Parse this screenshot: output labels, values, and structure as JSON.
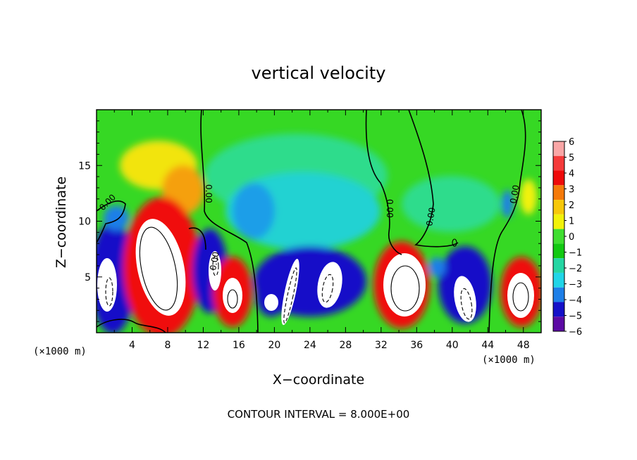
{
  "chart_data": {
    "type": "heatmap",
    "title": "vertical velocity",
    "xlabel": "X−coordinate",
    "ylabel": "Z−coordinate",
    "x_unit_left": "(×1000 m)",
    "x_unit_right": "(×1000 m)",
    "x_ticks": [
      "4",
      "8",
      "12",
      "16",
      "20",
      "24",
      "28",
      "32",
      "36",
      "40",
      "44",
      "48"
    ],
    "x_tick_values": [
      4,
      8,
      12,
      16,
      20,
      24,
      28,
      32,
      36,
      40,
      44,
      48
    ],
    "y_ticks": [
      "5",
      "10",
      "15"
    ],
    "y_tick_values": [
      5,
      10,
      15
    ],
    "xlim": [
      0,
      50
    ],
    "ylim": [
      0,
      20
    ],
    "colorbar": {
      "labels": [
        "6",
        "5",
        "4",
        "3",
        "2",
        "1",
        "0",
        "−1",
        "−2",
        "−3",
        "−4",
        "−5",
        "−6"
      ],
      "colors": [
        "#f9a6a6",
        "#f53a3a",
        "#ee0a0a",
        "#f57a0a",
        "#f7c80a",
        "#f2f20a",
        "#3fde30",
        "#12c912",
        "#24d6a3",
        "#20d5e8",
        "#1e7fe8",
        "#1510c8",
        "#5c0aa4"
      ]
    },
    "contour_labels": [
      "0.00",
      "0.00",
      "0.00",
      "0.00",
      "0.00",
      "0.00"
    ],
    "footer": "CONTOUR INTERVAL = 8.000E+00"
  }
}
